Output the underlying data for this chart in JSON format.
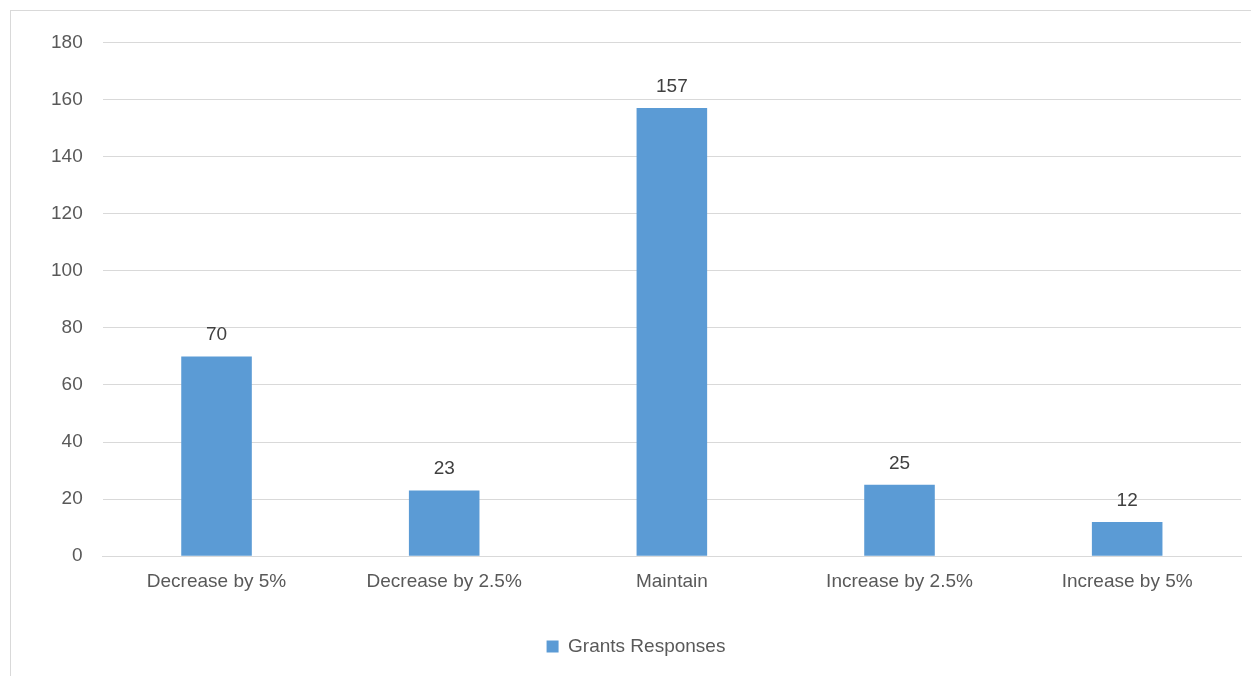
{
  "chart_data": {
    "type": "bar",
    "categories": [
      "Decrease by 5%",
      "Decrease by 2.5%",
      "Maintain",
      "Increase by 2.5%",
      "Increase by 5%"
    ],
    "series": [
      {
        "name": "Grants Responses",
        "color": "#5b9bd5",
        "values": [
          70,
          23,
          157,
          25,
          12
        ]
      }
    ],
    "ylim": [
      0,
      180
    ],
    "yticks": [
      0,
      20,
      40,
      60,
      80,
      100,
      120,
      140,
      160,
      180
    ],
    "grid": "y",
    "legend": "bottom",
    "data_labels": true
  }
}
